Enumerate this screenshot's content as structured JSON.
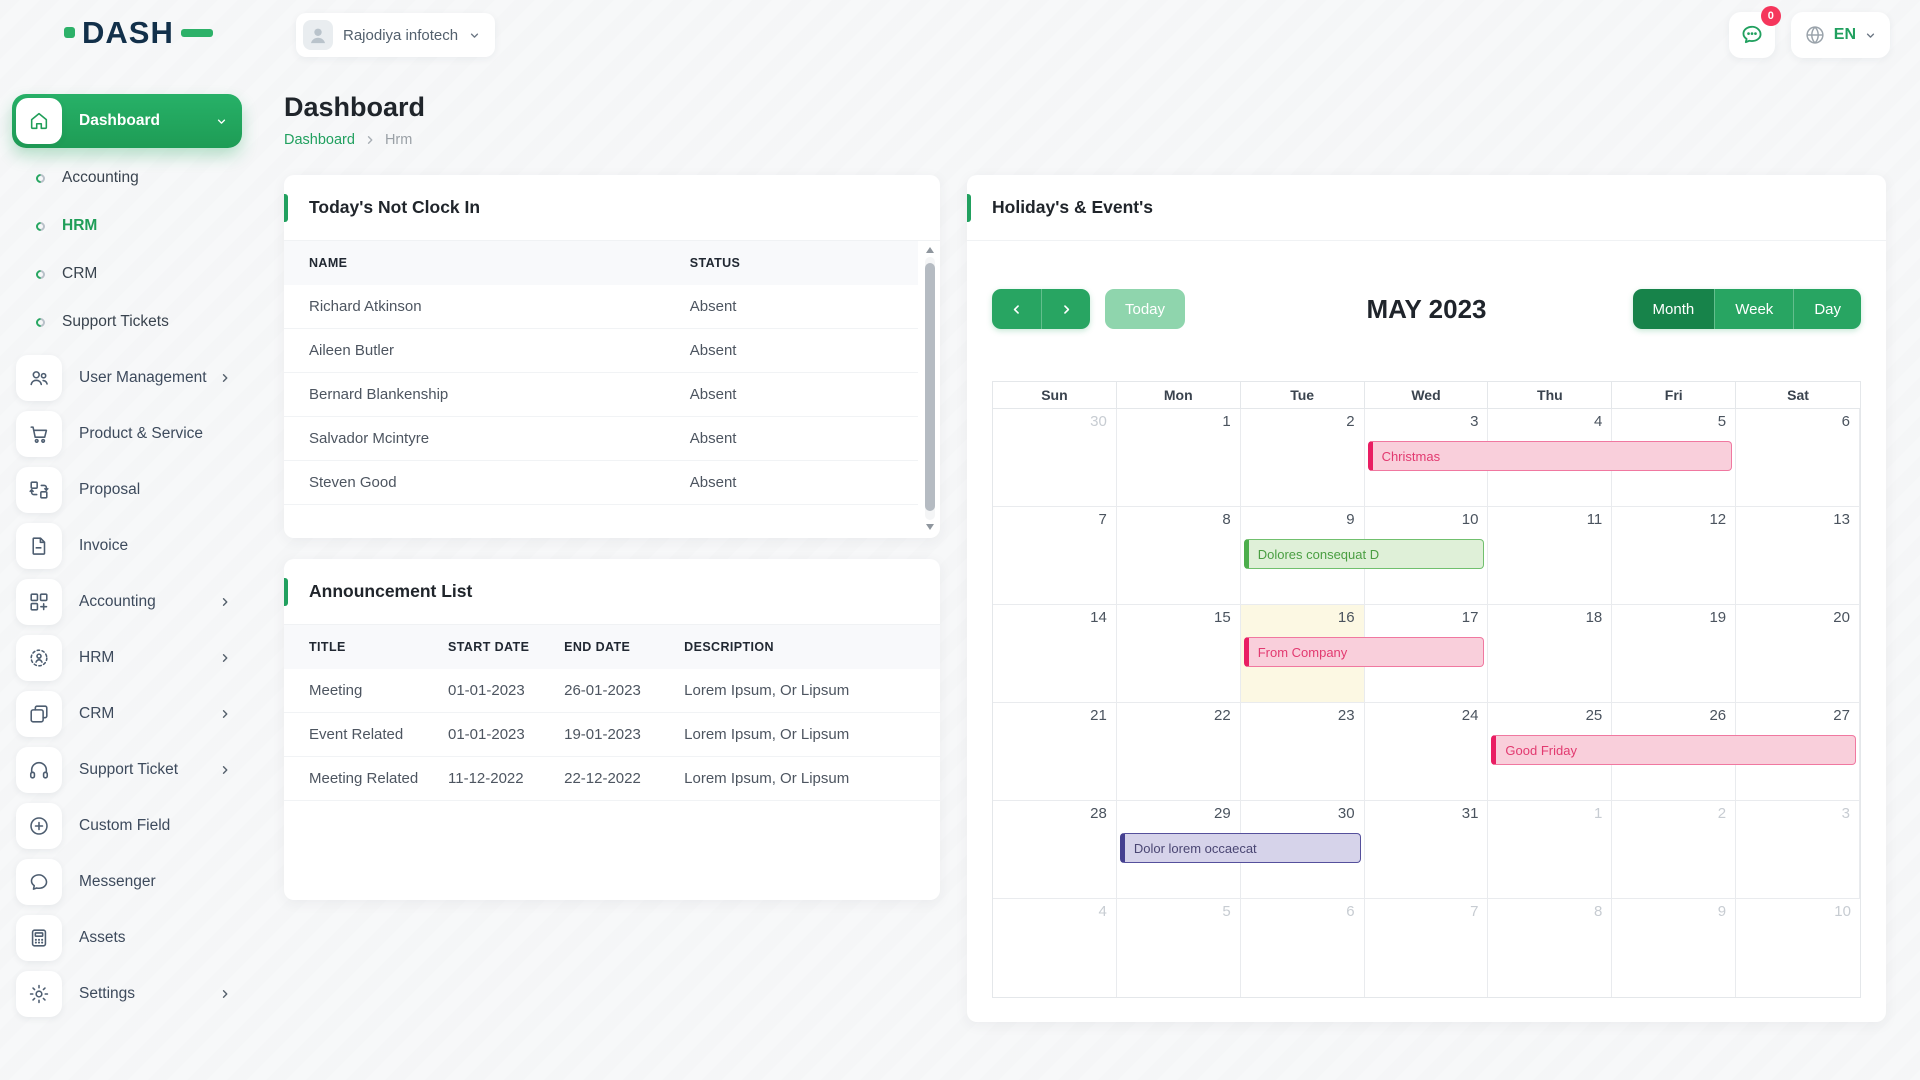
{
  "app": {
    "logo_text": "DASH",
    "company": "Rajodiya infotech",
    "messages_badge": "0",
    "language": "EN"
  },
  "page": {
    "title": "Dashboard",
    "breadcrumb": [
      "Dashboard",
      "Hrm"
    ]
  },
  "sidebar": {
    "dashboard": {
      "label": "Dashboard",
      "icon": "home-icon"
    },
    "dashboard_children": [
      {
        "label": "Accounting",
        "active": false
      },
      {
        "label": "HRM",
        "active": true
      },
      {
        "label": "CRM",
        "active": false
      },
      {
        "label": "Support Tickets",
        "active": false
      }
    ],
    "items": [
      {
        "label": "User Management",
        "icon": "users-icon",
        "expandable": true
      },
      {
        "label": "Product & Service",
        "icon": "cart-icon",
        "expandable": false
      },
      {
        "label": "Proposal",
        "icon": "workflow-icon",
        "expandable": false
      },
      {
        "label": "Invoice",
        "icon": "file-icon",
        "expandable": false
      },
      {
        "label": "Accounting",
        "icon": "grid-plus-icon",
        "expandable": true
      },
      {
        "label": "HRM",
        "icon": "person-target-icon",
        "expandable": true
      },
      {
        "label": "CRM",
        "icon": "squares-icon",
        "expandable": true
      },
      {
        "label": "Support Ticket",
        "icon": "headset-icon",
        "expandable": true
      },
      {
        "label": "Custom Field",
        "icon": "plus-circle-icon",
        "expandable": false
      },
      {
        "label": "Messenger",
        "icon": "chat-icon",
        "expandable": false
      },
      {
        "label": "Assets",
        "icon": "calculator-icon",
        "expandable": false
      },
      {
        "label": "Settings",
        "icon": "gear-icon",
        "expandable": true
      }
    ]
  },
  "not_clock_in": {
    "title": "Today's Not Clock In",
    "columns": [
      "NAME",
      "STATUS"
    ],
    "rows": [
      [
        "Richard Atkinson",
        "Absent"
      ],
      [
        "Aileen Butler",
        "Absent"
      ],
      [
        "Bernard Blankenship",
        "Absent"
      ],
      [
        "Salvador Mcintyre",
        "Absent"
      ],
      [
        "Steven Good",
        "Absent"
      ]
    ]
  },
  "announcements": {
    "title": "Announcement List",
    "columns": [
      "TITLE",
      "START DATE",
      "END DATE",
      "DESCRIPTION"
    ],
    "rows": [
      [
        "Meeting",
        "01-01-2023",
        "26-01-2023",
        "Lorem Ipsum, Or Lipsum"
      ],
      [
        "Event Related",
        "01-01-2023",
        "19-01-2023",
        "Lorem Ipsum, Or Lipsum"
      ],
      [
        "Meeting Related",
        "11-12-2022",
        "22-12-2022",
        "Lorem Ipsum, Or Lipsum"
      ]
    ]
  },
  "calendar": {
    "title": "Holiday's & Event's",
    "toolbar": {
      "today_label": "Today",
      "month_title": "MAY 2023",
      "views": [
        "Month",
        "Week",
        "Day"
      ],
      "active_view": "Month"
    },
    "day_headers": [
      "Sun",
      "Mon",
      "Tue",
      "Wed",
      "Thu",
      "Fri",
      "Sat"
    ],
    "weeks": [
      [
        {
          "d": 30,
          "m": true
        },
        {
          "d": 1
        },
        {
          "d": 2
        },
        {
          "d": 3
        },
        {
          "d": 4
        },
        {
          "d": 5
        },
        {
          "d": 6
        }
      ],
      [
        {
          "d": 7
        },
        {
          "d": 8
        },
        {
          "d": 9
        },
        {
          "d": 10
        },
        {
          "d": 11
        },
        {
          "d": 12
        },
        {
          "d": 13
        }
      ],
      [
        {
          "d": 14
        },
        {
          "d": 15
        },
        {
          "d": 16,
          "today": true
        },
        {
          "d": 17
        },
        {
          "d": 18
        },
        {
          "d": 19
        },
        {
          "d": 20
        }
      ],
      [
        {
          "d": 21
        },
        {
          "d": 22
        },
        {
          "d": 23
        },
        {
          "d": 24
        },
        {
          "d": 25
        },
        {
          "d": 26
        },
        {
          "d": 27
        }
      ],
      [
        {
          "d": 28
        },
        {
          "d": 29
        },
        {
          "d": 30
        },
        {
          "d": 31
        },
        {
          "d": 1,
          "m": true
        },
        {
          "d": 2,
          "m": true
        },
        {
          "d": 3,
          "m": true
        }
      ],
      [
        {
          "d": 4,
          "m": true
        },
        {
          "d": 5,
          "m": true
        },
        {
          "d": 6,
          "m": true
        },
        {
          "d": 7,
          "m": true
        },
        {
          "d": 8,
          "m": true
        },
        {
          "d": 9,
          "m": true
        },
        {
          "d": 10,
          "m": true
        }
      ]
    ],
    "events": [
      {
        "title": "Christmas",
        "week": 0,
        "col": 3,
        "span": 3,
        "color": "pink"
      },
      {
        "title": "Dolores consequat D",
        "week": 1,
        "col": 2,
        "span": 2,
        "color": "green"
      },
      {
        "title": "From Company",
        "week": 2,
        "col": 2,
        "span": 2,
        "color": "pink"
      },
      {
        "title": "Good Friday",
        "week": 3,
        "col": 4,
        "span": 3,
        "color": "pink"
      },
      {
        "title": "Dolor lorem occaecat",
        "week": 4,
        "col": 1,
        "span": 2,
        "color": "purple"
      }
    ]
  },
  "colors": {
    "primary_green": "#21a05f",
    "active_view_green": "#17834a",
    "toolbar_green": "#28a562",
    "today_button_green": "#8fd5ad",
    "badge_pink": "#f5365c",
    "today_cell": "#fcf8e3",
    "event_pink": {
      "bg": "#f9cfdb",
      "border": "#f078a0",
      "edge": "#e91e63",
      "text": "#e23a70"
    },
    "event_green": {
      "bg": "#dff0d8",
      "border": "#71c06e",
      "edge": "#4cae4c",
      "text": "#4a9e42"
    },
    "event_purple": {
      "bg": "#d6d3ea",
      "border": "#55509c",
      "edge": "#454090",
      "text": "#4a4673"
    }
  }
}
